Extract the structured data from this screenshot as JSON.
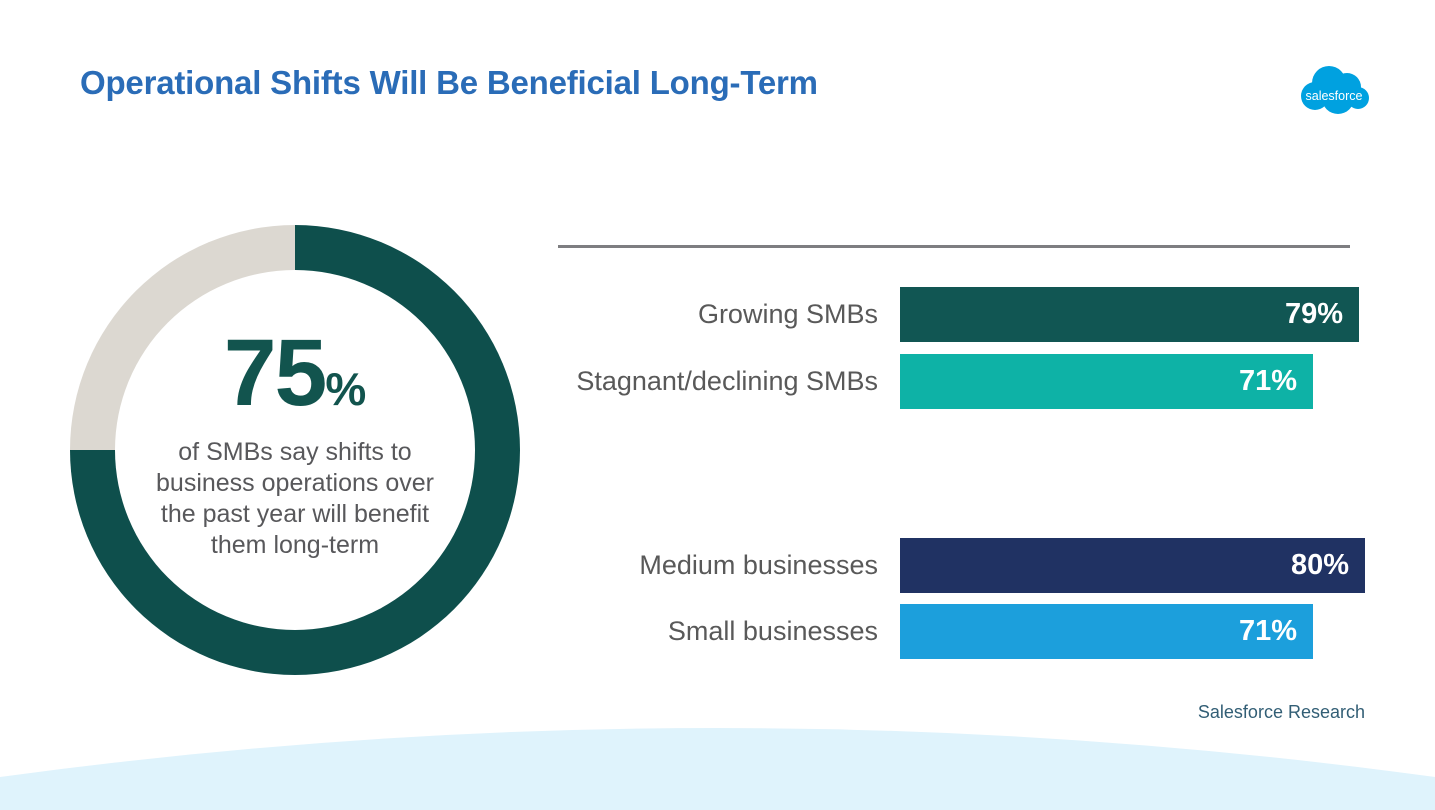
{
  "page": {
    "title": "Operational Shifts Will Be Beneficial Long-Term",
    "source": "Salesforce Research"
  },
  "logo": {
    "text": "salesforce",
    "color": "#00A1E0"
  },
  "colors": {
    "title_blue": "#2A6CB7",
    "donut_value_text": "#12544E",
    "caption_gray": "#58585B",
    "label_gray": "#595959",
    "divider_gray": "#7E7E81",
    "source_slate": "#325E75",
    "wave_blue": "#DFF3FC",
    "bar_value_white": "#FFFFFF"
  },
  "chart_data": [
    {
      "type": "pie",
      "subtype": "donut",
      "value": 75,
      "max": 100,
      "center_label": "75",
      "center_unit": "%",
      "caption_lines": [
        "of SMBs say shifts to",
        "business operations over",
        "the past year will benefit",
        "them long-term"
      ],
      "fill_color": "#0E4F4C",
      "track_color": "#DCD8D1",
      "start_angle": "top",
      "direction": "clockwise"
    },
    {
      "type": "bar",
      "orientation": "horizontal",
      "axis_max": 100,
      "value_suffix": "%",
      "groups": [
        {
          "rows": [
            {
              "label": "Growing SMBs",
              "value": 79,
              "display": "79%",
              "color": "#115653"
            },
            {
              "label": "Stagnant/declining SMBs",
              "value": 71,
              "display": "71%",
              "color": "#0EB2A6"
            }
          ]
        },
        {
          "rows": [
            {
              "label": "Medium businesses",
              "value": 80,
              "display": "80%",
              "color": "#203263"
            },
            {
              "label": "Small businesses",
              "value": 71,
              "display": "71%",
              "color": "#1C9FDC"
            }
          ]
        }
      ]
    }
  ]
}
